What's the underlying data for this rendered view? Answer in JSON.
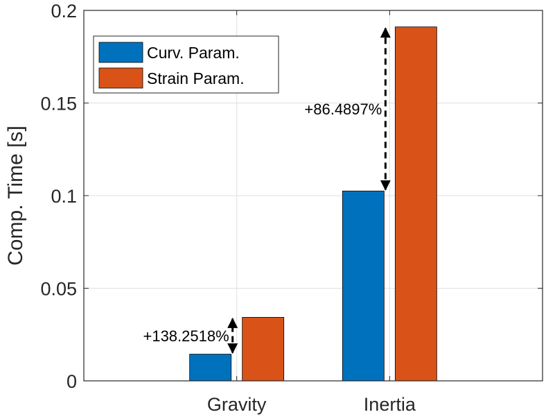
{
  "chart_data": {
    "type": "bar",
    "categories": [
      "Gravity",
      "Inertia"
    ],
    "series": [
      {
        "name": "Curv. Param.",
        "values": [
          0.0144,
          0.1025
        ],
        "color": "#0072BD"
      },
      {
        "name": "Strain Param.",
        "values": [
          0.0343,
          0.1911
        ],
        "color": "#D95319"
      }
    ],
    "ylabel": "Comp. Time [s]",
    "ylim": [
      0,
      0.2
    ],
    "yticks": [
      0,
      0.05,
      0.1,
      0.15,
      0.2
    ],
    "ytick_labels": [
      "0",
      "0.05",
      "0.1",
      "0.15",
      "0.2"
    ],
    "grid": true,
    "legend_position": "top-left",
    "annotations": [
      {
        "category": "Gravity",
        "text": "+138.2518%",
        "from": 0.0144,
        "to": 0.0343
      },
      {
        "category": "Inertia",
        "text": "+86.4897%",
        "from": 0.1025,
        "to": 0.1911
      }
    ]
  }
}
